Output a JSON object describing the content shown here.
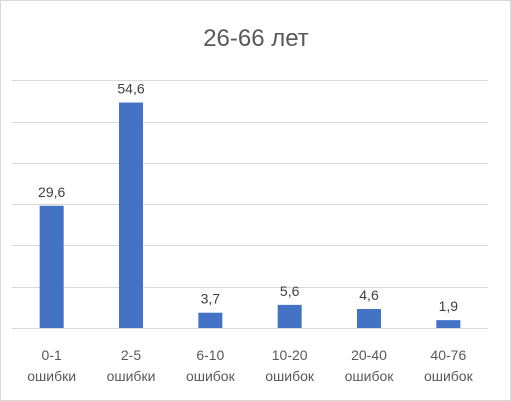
{
  "chart_data": {
    "type": "bar",
    "title": "26-66 лет",
    "categories": [
      [
        "0-1",
        "ошибки"
      ],
      [
        "2-5",
        "ошибки"
      ],
      [
        "6-10",
        "ошибок"
      ],
      [
        "10-20",
        "ошибок"
      ],
      [
        "20-40",
        "ошибок"
      ],
      [
        "40-76",
        "ошибок"
      ]
    ],
    "values": [
      29.6,
      54.6,
      3.7,
      5.6,
      4.6,
      1.9
    ],
    "value_labels": [
      "29,6",
      "54,6",
      "3,7",
      "5,6",
      "4,6",
      "1,9"
    ],
    "ylim": [
      0,
      62
    ],
    "gridlines": [
      10,
      20,
      30,
      40,
      50,
      60
    ],
    "grid": true,
    "legend": "none",
    "bar_color": "#4472c4"
  }
}
